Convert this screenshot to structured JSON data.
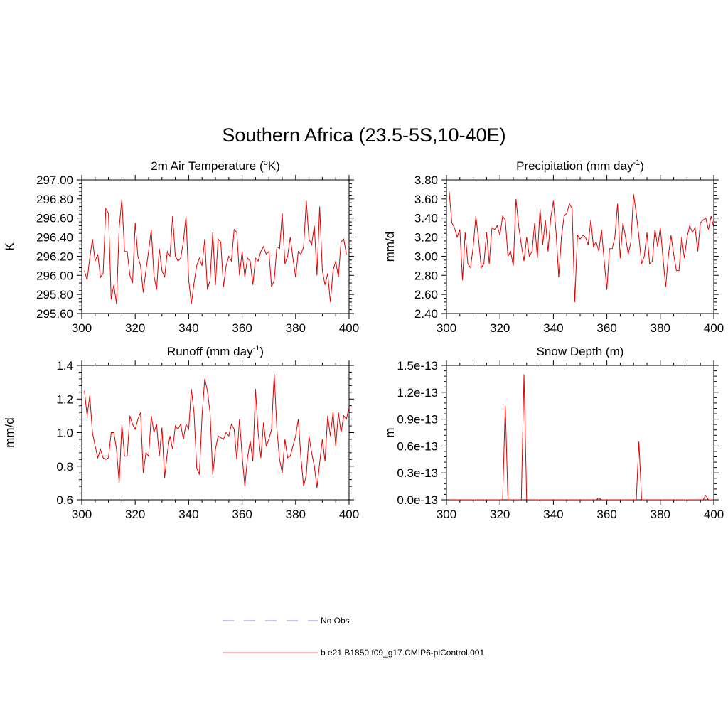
{
  "figure": {
    "title": "Southern Africa (23.5-5S,10-40E)"
  },
  "chart_data": [
    {
      "type": "line",
      "title_main": "2m Air Temperature (",
      "title_sup": "o",
      "title_end": "K)",
      "ylabel": "K",
      "xlim": [
        300,
        400
      ],
      "ylim": [
        295.6,
        297.0
      ],
      "x_ticks": [
        300,
        320,
        340,
        360,
        380,
        400
      ],
      "y_ticks": [
        295.6,
        295.8,
        296.0,
        296.2,
        296.4,
        296.6,
        296.8,
        297.0
      ],
      "y_tick_labels": [
        "295.60",
        "295.80",
        "296.00",
        "296.20",
        "296.40",
        "296.60",
        "296.80",
        "297.00"
      ],
      "x_start": 301,
      "series": [
        {
          "name": "b.e21.B1850.f09_g17.CMIP6-piControl.001",
          "color": "#e00000",
          "values": [
            296.05,
            295.95,
            296.18,
            296.38,
            296.15,
            296.22,
            295.98,
            296.02,
            296.7,
            296.65,
            295.75,
            295.9,
            295.7,
            296.5,
            296.8,
            296.25,
            296.25,
            296.0,
            295.92,
            296.55,
            296.2,
            296.1,
            295.82,
            296.05,
            296.25,
            296.48,
            296.0,
            295.85,
            296.28,
            296.05,
            295.98,
            296.25,
            296.2,
            296.62,
            296.2,
            296.15,
            296.18,
            296.35,
            296.62,
            295.95,
            295.7,
            295.92,
            296.1,
            296.18,
            296.1,
            296.38,
            295.85,
            295.95,
            296.45,
            295.9,
            296.38,
            296.35,
            295.88,
            296.1,
            296.2,
            296.15,
            296.48,
            296.45,
            296.0,
            296.25,
            295.98,
            296.18,
            296.15,
            295.9,
            296.18,
            296.15,
            296.25,
            296.3,
            296.22,
            296.25,
            295.88,
            295.95,
            296.3,
            296.28,
            296.65,
            296.12,
            296.2,
            296.4,
            296.18,
            295.98,
            296.25,
            296.22,
            296.3,
            296.78,
            296.38,
            296.32,
            296.52,
            296.0,
            296.72,
            296.05,
            295.9,
            296.02,
            295.72,
            296.05,
            296.15,
            295.98,
            296.35,
            296.38,
            296.22
          ]
        }
      ]
    },
    {
      "type": "line",
      "title_main": "Precipitation (mm day",
      "title_sup": "-1",
      "title_end": ")",
      "ylabel": "mm/d",
      "xlim": [
        300,
        400
      ],
      "ylim": [
        2.4,
        3.8
      ],
      "x_ticks": [
        300,
        320,
        340,
        360,
        380,
        400
      ],
      "y_ticks": [
        2.4,
        2.6,
        2.8,
        3.0,
        3.2,
        3.4,
        3.6,
        3.8
      ],
      "y_tick_labels": [
        "2.40",
        "2.60",
        "2.80",
        "3.00",
        "3.20",
        "3.40",
        "3.60",
        "3.80"
      ],
      "x_start": 301,
      "series": [
        {
          "name": "b.e21.B1850.f09_g17.CMIP6-piControl.001",
          "color": "#e00000",
          "values": [
            3.68,
            3.35,
            3.3,
            3.2,
            3.28,
            2.75,
            3.25,
            2.92,
            2.88,
            3.1,
            3.42,
            3.18,
            2.88,
            2.92,
            3.25,
            2.92,
            3.3,
            3.28,
            3.32,
            3.22,
            3.42,
            3.38,
            3.0,
            3.05,
            2.9,
            3.6,
            3.32,
            3.12,
            2.95,
            3.2,
            3.0,
            3.05,
            3.35,
            2.98,
            3.5,
            3.12,
            3.38,
            3.05,
            3.4,
            3.58,
            3.25,
            2.78,
            3.2,
            3.42,
            3.45,
            3.55,
            3.5,
            2.52,
            3.22,
            3.18,
            3.22,
            3.2,
            3.12,
            3.38,
            3.1,
            3.15,
            3.05,
            3.28,
            2.95,
            2.65,
            3.08,
            3.08,
            3.2,
            3.55,
            2.98,
            3.35,
            3.2,
            3.02,
            3.15,
            3.65,
            3.45,
            3.2,
            2.92,
            3.0,
            3.25,
            2.92,
            2.95,
            3.28,
            3.1,
            3.3,
            2.98,
            2.68,
            3.0,
            3.22,
            3.02,
            2.85,
            2.85,
            3.2,
            2.98,
            3.2,
            3.32,
            3.25,
            3.3,
            3.05,
            3.35,
            3.38,
            3.4,
            3.28,
            3.42,
            3.3
          ]
        }
      ]
    },
    {
      "type": "line",
      "title_main": "Runoff (mm day",
      "title_sup": "-1",
      "title_end": ")",
      "ylabel": "mm/d",
      "xlim": [
        300,
        400
      ],
      "ylim": [
        0.6,
        1.4
      ],
      "x_ticks": [
        300,
        320,
        340,
        360,
        380,
        400
      ],
      "y_ticks": [
        0.6,
        0.8,
        1.0,
        1.2,
        1.4
      ],
      "y_tick_labels": [
        "0.6",
        "0.8",
        "1.0",
        "1.2",
        "1.4"
      ],
      "x_start": 301,
      "series": [
        {
          "name": "b.e21.B1850.f09_g17.CMIP6-piControl.001",
          "color": "#e00000",
          "values": [
            1.25,
            1.1,
            1.22,
            1.0,
            0.92,
            0.85,
            0.9,
            0.85,
            0.84,
            0.85,
            1.0,
            1.0,
            0.9,
            0.7,
            1.05,
            0.86,
            0.86,
            1.1,
            1.05,
            1.02,
            1.08,
            1.12,
            0.76,
            0.88,
            0.86,
            1.1,
            1.0,
            1.05,
            0.86,
            1.03,
            0.73,
            0.88,
            0.98,
            0.9,
            1.04,
            1.02,
            1.05,
            0.96,
            1.05,
            1.02,
            1.26,
            1.12,
            0.79,
            0.75,
            1.1,
            1.32,
            1.25,
            1.12,
            0.75,
            0.9,
            0.98,
            0.97,
            0.96,
            1.0,
            0.98,
            1.05,
            1.02,
            0.84,
            1.08,
            0.86,
            0.68,
            0.85,
            0.95,
            0.83,
            1.26,
            1.0,
            0.85,
            1.06,
            0.92,
            0.96,
            1.02,
            1.35,
            1.02,
            0.84,
            0.76,
            0.96,
            0.85,
            0.86,
            0.92,
            0.98,
            1.08,
            0.85,
            0.68,
            0.75,
            0.98,
            0.88,
            0.8,
            0.67,
            0.82,
            0.96,
            0.83,
            1.1,
            0.98,
            1.12,
            0.92,
            1.12,
            1.0,
            1.1,
            1.08,
            1.15
          ]
        }
      ]
    },
    {
      "type": "line",
      "title_main": "Snow Depth (m)",
      "title_sup": "",
      "title_end": "",
      "ylabel": "m",
      "xlim": [
        300,
        400
      ],
      "ylim": [
        0.0,
        1.5
      ],
      "y_unit": "e-13",
      "x_ticks": [
        300,
        320,
        340,
        360,
        380,
        400
      ],
      "y_ticks": [
        0.0,
        0.3,
        0.6,
        0.9,
        1.2,
        1.5
      ],
      "y_tick_labels": [
        "0.0e-13",
        "0.3e-13",
        "0.6e-13",
        "0.9e-13",
        "1.2e-13",
        "1.5e-13"
      ],
      "x_start": 301,
      "series": [
        {
          "name": "b.e21.B1850.f09_g17.CMIP6-piControl.001",
          "color": "#e00000",
          "values": [
            0,
            0,
            0,
            0,
            0,
            0,
            0,
            0,
            0,
            0,
            0,
            0,
            0,
            0,
            0,
            0,
            0,
            0,
            0,
            0,
            0,
            1.05,
            0,
            0,
            0,
            0,
            0,
            0,
            1.4,
            0,
            0,
            0,
            0,
            0,
            0,
            0,
            0,
            0,
            0,
            0,
            0,
            0,
            0,
            0,
            0,
            0,
            0,
            0,
            0,
            0,
            0,
            0,
            0,
            0,
            0,
            0,
            0.02,
            0,
            0,
            0,
            0,
            0,
            0,
            0,
            0,
            0,
            0,
            0,
            0,
            0,
            0,
            0.65,
            0,
            0,
            0,
            0,
            0,
            0,
            0,
            0,
            0,
            0,
            0,
            0,
            0,
            0,
            0,
            0,
            0,
            0,
            0,
            0,
            0,
            0,
            0,
            0,
            0.05,
            0,
            0,
            0
          ]
        }
      ]
    }
  ],
  "legend": [
    {
      "label": "No Obs",
      "color": "#a0a0ff",
      "dash": "dashed"
    },
    {
      "label": "b.e21.B1850.f09_g17.CMIP6-piControl.001",
      "color": "#ff8080",
      "dash": "solid"
    }
  ]
}
